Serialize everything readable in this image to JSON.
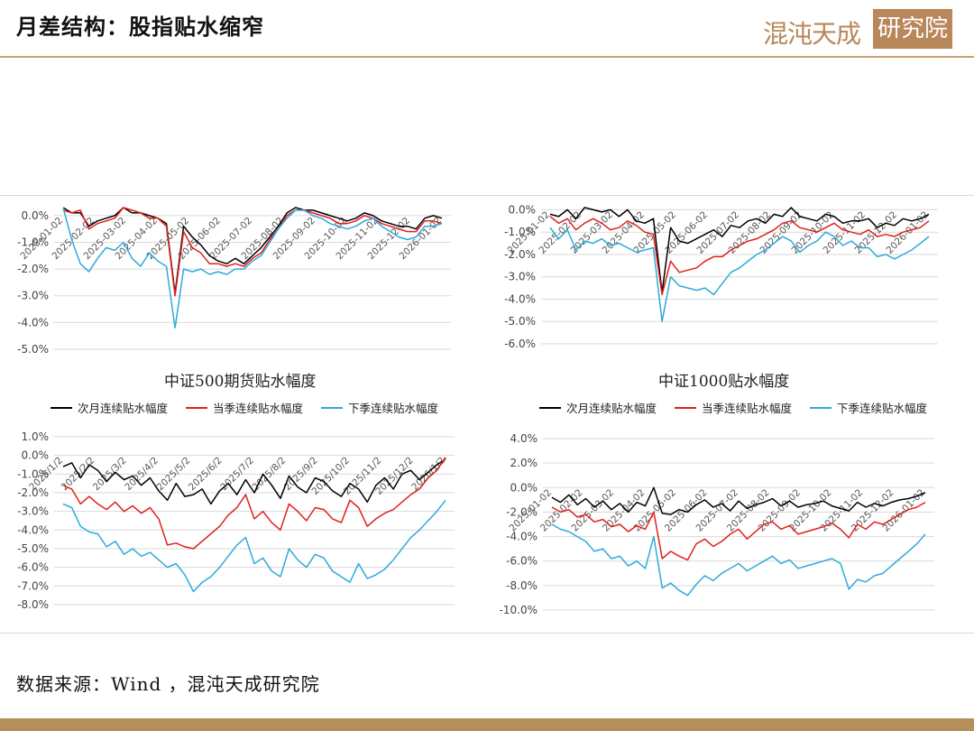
{
  "page": {
    "title": "月差结构：股指贴水缩窄",
    "logo_text": "混沌天成",
    "logo_badge": "研究院",
    "source": "数据来源：Wind ，混沌天成研究院",
    "colors": {
      "black": "#000000",
      "red": "#e0201b",
      "blue": "#2eaadc",
      "accent": "#c9a26e"
    }
  },
  "subtitles": {
    "left": "中证500期货贴水幅度",
    "right": "中证1000贴水幅度"
  },
  "chart_data": [
    {
      "type": "line",
      "id": "top-left",
      "yticks": [
        "0.0%",
        "-1.0%",
        "-2.0%",
        "-3.0%",
        "-4.0%",
        "-5.0%"
      ],
      "ylim": [
        -5,
        0.4
      ],
      "xticks": [
        "2025-01-02",
        "2025-02-02",
        "2025-03-02",
        "2025-04-02",
        "2025-05-02",
        "2025-06-02",
        "2025-07-02",
        "2025-08-02",
        "2025-09-02",
        "2025-10-02",
        "2025-11-02",
        "2025-12-02",
        "2026-01-02"
      ],
      "series": [
        {
          "color": "#000000",
          "values": [
            0.3,
            0.1,
            0.1,
            -0.4,
            -0.2,
            -0.1,
            0.0,
            0.3,
            0.1,
            0.1,
            0.0,
            -0.1,
            -0.3,
            -2.9,
            -0.4,
            -0.8,
            -1.1,
            -1.5,
            -1.7,
            -1.8,
            -1.6,
            -1.8,
            -1.5,
            -1.2,
            -0.8,
            -0.4,
            0.1,
            0.3,
            0.2,
            0.2,
            0.1,
            0.0,
            -0.1,
            -0.2,
            -0.1,
            0.1,
            0.0,
            -0.2,
            -0.3,
            -0.4,
            -0.4,
            -0.5,
            -0.1,
            0.0,
            -0.1
          ]
        },
        {
          "color": "#e0201b",
          "values": [
            0.2,
            0.1,
            0.2,
            -0.5,
            -0.3,
            -0.2,
            -0.1,
            0.3,
            0.2,
            0.1,
            -0.1,
            -0.1,
            -0.4,
            -3.0,
            -0.6,
            -1.2,
            -1.4,
            -1.8,
            -1.8,
            -1.9,
            -1.8,
            -1.9,
            -1.6,
            -1.4,
            -0.9,
            -0.5,
            0.0,
            0.2,
            0.2,
            0.1,
            0.0,
            -0.1,
            -0.3,
            -0.3,
            -0.2,
            0.0,
            -0.1,
            -0.3,
            -0.4,
            -0.5,
            -0.6,
            -0.6,
            -0.2,
            -0.2,
            -0.3
          ]
        },
        {
          "color": "#2eaadc",
          "values": [
            0.3,
            -0.9,
            -1.8,
            -2.1,
            -1.6,
            -1.2,
            -1.3,
            -1.0,
            -1.6,
            -1.9,
            -1.4,
            -1.7,
            -1.9,
            -4.2,
            -2.0,
            -2.1,
            -2.0,
            -2.2,
            -2.1,
            -2.2,
            -2.0,
            -2.0,
            -1.7,
            -1.5,
            -1.0,
            -0.5,
            -0.1,
            0.2,
            0.2,
            0.0,
            -0.1,
            -0.3,
            -0.4,
            -0.5,
            -0.4,
            -0.2,
            -0.1,
            -0.4,
            -0.6,
            -0.8,
            -0.9,
            -0.8,
            -0.4,
            -0.4,
            -0.3
          ]
        }
      ]
    },
    {
      "type": "line",
      "id": "top-right",
      "yticks": [
        "0.0%",
        "-1.0%",
        "-2.0%",
        "-3.0%",
        "-4.0%",
        "-5.0%",
        "-6.0%"
      ],
      "ylim": [
        -6,
        0.3
      ],
      "xticks": [
        "2025-01-02",
        "2025-02-02",
        "2025-03-02",
        "2025-04-02",
        "2025-05-02",
        "2025-06-02",
        "2025-07-02",
        "2025-08-02",
        "2025-09-02",
        "2025-10-02",
        "2025-11-02",
        "2025-12-02",
        "2026-01-02"
      ],
      "series": [
        {
          "color": "#000000",
          "values": [
            -0.2,
            -0.3,
            0.0,
            -0.4,
            0.1,
            0.0,
            -0.1,
            0.0,
            -0.3,
            0.0,
            -0.5,
            -0.6,
            -0.4,
            -3.7,
            -0.8,
            -1.4,
            -1.5,
            -1.3,
            -1.1,
            -0.9,
            -1.2,
            -0.7,
            -0.8,
            -0.5,
            -0.4,
            -0.6,
            -0.2,
            -0.3,
            0.1,
            -0.3,
            -0.4,
            -0.5,
            -0.2,
            -0.3,
            -0.6,
            -0.5,
            -0.5,
            -0.4,
            -0.8,
            -0.6,
            -0.7,
            -0.4,
            -0.5,
            -0.4,
            -0.2
          ]
        },
        {
          "color": "#e0201b",
          "values": [
            -0.3,
            -0.6,
            -0.4,
            -0.9,
            -0.6,
            -0.4,
            -0.6,
            -0.9,
            -0.8,
            -0.5,
            -0.7,
            -1.0,
            -1.1,
            -3.8,
            -2.3,
            -2.8,
            -2.7,
            -2.6,
            -2.3,
            -2.1,
            -2.1,
            -1.8,
            -1.6,
            -1.4,
            -1.3,
            -1.1,
            -0.9,
            -0.6,
            -0.5,
            -0.8,
            -0.9,
            -1.0,
            -0.8,
            -0.6,
            -0.9,
            -1.0,
            -1.1,
            -0.9,
            -1.2,
            -1.1,
            -1.2,
            -1.0,
            -0.9,
            -0.8,
            -0.5
          ]
        },
        {
          "color": "#2eaadc",
          "values": [
            -0.8,
            -1.3,
            -0.9,
            -1.8,
            -1.4,
            -1.5,
            -1.3,
            -1.6,
            -1.5,
            -1.7,
            -1.9,
            -1.8,
            -1.7,
            -5.0,
            -3.0,
            -3.4,
            -3.5,
            -3.6,
            -3.5,
            -3.8,
            -3.3,
            -2.8,
            -2.6,
            -2.3,
            -2.0,
            -1.8,
            -1.5,
            -1.2,
            -1.4,
            -1.9,
            -1.6,
            -1.4,
            -1.0,
            -1.2,
            -1.6,
            -1.4,
            -1.7,
            -1.7,
            -2.1,
            -2.0,
            -2.2,
            -2.0,
            -1.8,
            -1.5,
            -1.2
          ]
        }
      ]
    },
    {
      "type": "line",
      "id": "bottom-left",
      "legend": [
        "次月连续贴水幅度",
        "当季连续贴水幅度",
        "下季连续贴水幅度"
      ],
      "yticks": [
        "1.0%",
        "0.0%",
        "-1.0%",
        "-2.0%",
        "-3.0%",
        "-4.0%",
        "-5.0%",
        "-6.0%",
        "-7.0%",
        "-8.0%"
      ],
      "ylim": [
        -8,
        1
      ],
      "xticks": [
        "2025/1/2",
        "2025/2/2",
        "2025/3/2",
        "2025/4/2",
        "2025/5/2",
        "2025/6/2",
        "2025/7/2",
        "2025/8/2",
        "2025/9/2",
        "2025/10/2",
        "2025/11/2",
        "2025/12/2",
        "2026/1/2"
      ],
      "series": [
        {
          "color": "#000000",
          "values": [
            -0.6,
            -0.4,
            -1.2,
            -0.5,
            -0.8,
            -1.4,
            -0.9,
            -1.3,
            -1.1,
            -1.6,
            -1.2,
            -1.9,
            -2.4,
            -1.5,
            -2.2,
            -2.1,
            -1.8,
            -2.6,
            -1.9,
            -1.5,
            -2.1,
            -1.3,
            -2.0,
            -1.0,
            -1.6,
            -2.3,
            -1.1,
            -1.7,
            -2.0,
            -1.2,
            -1.4,
            -1.9,
            -2.2,
            -1.5,
            -1.8,
            -2.5,
            -1.6,
            -1.2,
            -1.8,
            -1.0,
            -0.8,
            -1.3,
            -0.9,
            -0.5,
            -0.2
          ]
        },
        {
          "color": "#e0201b",
          "values": [
            -1.6,
            -1.8,
            -2.6,
            -2.2,
            -2.6,
            -2.9,
            -2.5,
            -3.0,
            -2.7,
            -3.1,
            -2.8,
            -3.4,
            -4.8,
            -4.7,
            -4.9,
            -5.0,
            -4.6,
            -4.2,
            -3.8,
            -3.2,
            -2.8,
            -2.1,
            -3.4,
            -3.0,
            -3.6,
            -4.0,
            -2.6,
            -3.0,
            -3.5,
            -2.8,
            -2.9,
            -3.4,
            -3.6,
            -2.4,
            -2.8,
            -3.8,
            -3.4,
            -3.1,
            -2.9,
            -2.5,
            -2.1,
            -1.8,
            -1.2,
            -0.8,
            -0.1
          ]
        },
        {
          "color": "#2eaadc",
          "values": [
            -2.6,
            -2.8,
            -3.8,
            -4.1,
            -4.2,
            -4.9,
            -4.6,
            -5.3,
            -5.0,
            -5.4,
            -5.2,
            -5.6,
            -6.0,
            -5.8,
            -6.4,
            -7.3,
            -6.8,
            -6.5,
            -6.0,
            -5.4,
            -4.8,
            -4.4,
            -5.8,
            -5.5,
            -6.2,
            -6.5,
            -5.0,
            -5.6,
            -6.0,
            -5.3,
            -5.5,
            -6.2,
            -6.5,
            -6.8,
            -5.8,
            -6.6,
            -6.4,
            -6.1,
            -5.6,
            -5.0,
            -4.4,
            -4.0,
            -3.5,
            -3.0,
            -2.4
          ]
        }
      ]
    },
    {
      "type": "line",
      "id": "bottom-right",
      "legend": [
        "次月连续贴水幅度",
        "当季连续贴水幅度",
        "下季连续贴水幅度"
      ],
      "yticks": [
        "4.0%",
        "2.0%",
        "0.0%",
        "-2.0%",
        "-4.0%",
        "-6.0%",
        "-8.0%",
        "-10.0%"
      ],
      "ylim": [
        -10,
        4
      ],
      "xticks": [
        "2025-01-02",
        "2025-02-02",
        "2025-03-02",
        "2025-04-02",
        "2025-05-02",
        "2025-06-02",
        "2025-07-02",
        "2025-08-02",
        "2025-09-02",
        "2025-10-02",
        "2025-11-02",
        "2025-12-02",
        "2026-01-02"
      ],
      "series": [
        {
          "color": "#000000",
          "values": [
            -0.8,
            -1.2,
            -0.6,
            -1.4,
            -0.9,
            -1.6,
            -1.1,
            -1.8,
            -1.3,
            -2.0,
            -1.2,
            -1.5,
            0.0,
            -2.1,
            -2.2,
            -1.8,
            -2.0,
            -1.4,
            -1.0,
            -1.6,
            -1.3,
            -1.9,
            -1.1,
            -1.7,
            -1.4,
            -1.2,
            -0.9,
            -1.5,
            -1.1,
            -1.6,
            -1.4,
            -1.3,
            -1.1,
            -1.5,
            -1.7,
            -1.9,
            -1.2,
            -1.6,
            -1.3,
            -1.5,
            -1.2,
            -1.0,
            -0.9,
            -0.7,
            -0.4
          ]
        },
        {
          "color": "#e0201b",
          "values": [
            -1.6,
            -2.0,
            -1.8,
            -2.4,
            -2.2,
            -2.8,
            -2.6,
            -3.2,
            -3.0,
            -3.6,
            -3.1,
            -3.4,
            -2.0,
            -5.8,
            -5.2,
            -5.6,
            -5.9,
            -4.6,
            -4.2,
            -4.8,
            -4.4,
            -3.8,
            -3.4,
            -4.2,
            -3.6,
            -3.0,
            -2.8,
            -3.4,
            -3.1,
            -3.8,
            -3.6,
            -3.4,
            -3.2,
            -2.9,
            -3.4,
            -4.1,
            -3.0,
            -3.4,
            -2.8,
            -3.0,
            -2.6,
            -2.2,
            -1.8,
            -1.6,
            -1.2
          ]
        },
        {
          "color": "#2eaadc",
          "values": [
            -3.0,
            -3.4,
            -3.6,
            -4.0,
            -4.4,
            -5.2,
            -5.0,
            -5.8,
            -5.6,
            -6.4,
            -6.0,
            -6.6,
            -4.0,
            -8.2,
            -7.8,
            -8.4,
            -8.8,
            -7.9,
            -7.2,
            -7.6,
            -7.0,
            -6.6,
            -6.2,
            -6.8,
            -6.4,
            -6.0,
            -5.6,
            -6.2,
            -5.9,
            -6.6,
            -6.4,
            -6.2,
            -6.0,
            -5.8,
            -6.2,
            -8.3,
            -7.5,
            -7.7,
            -7.2,
            -7.0,
            -6.4,
            -5.8,
            -5.2,
            -4.6,
            -3.8
          ]
        }
      ]
    }
  ]
}
